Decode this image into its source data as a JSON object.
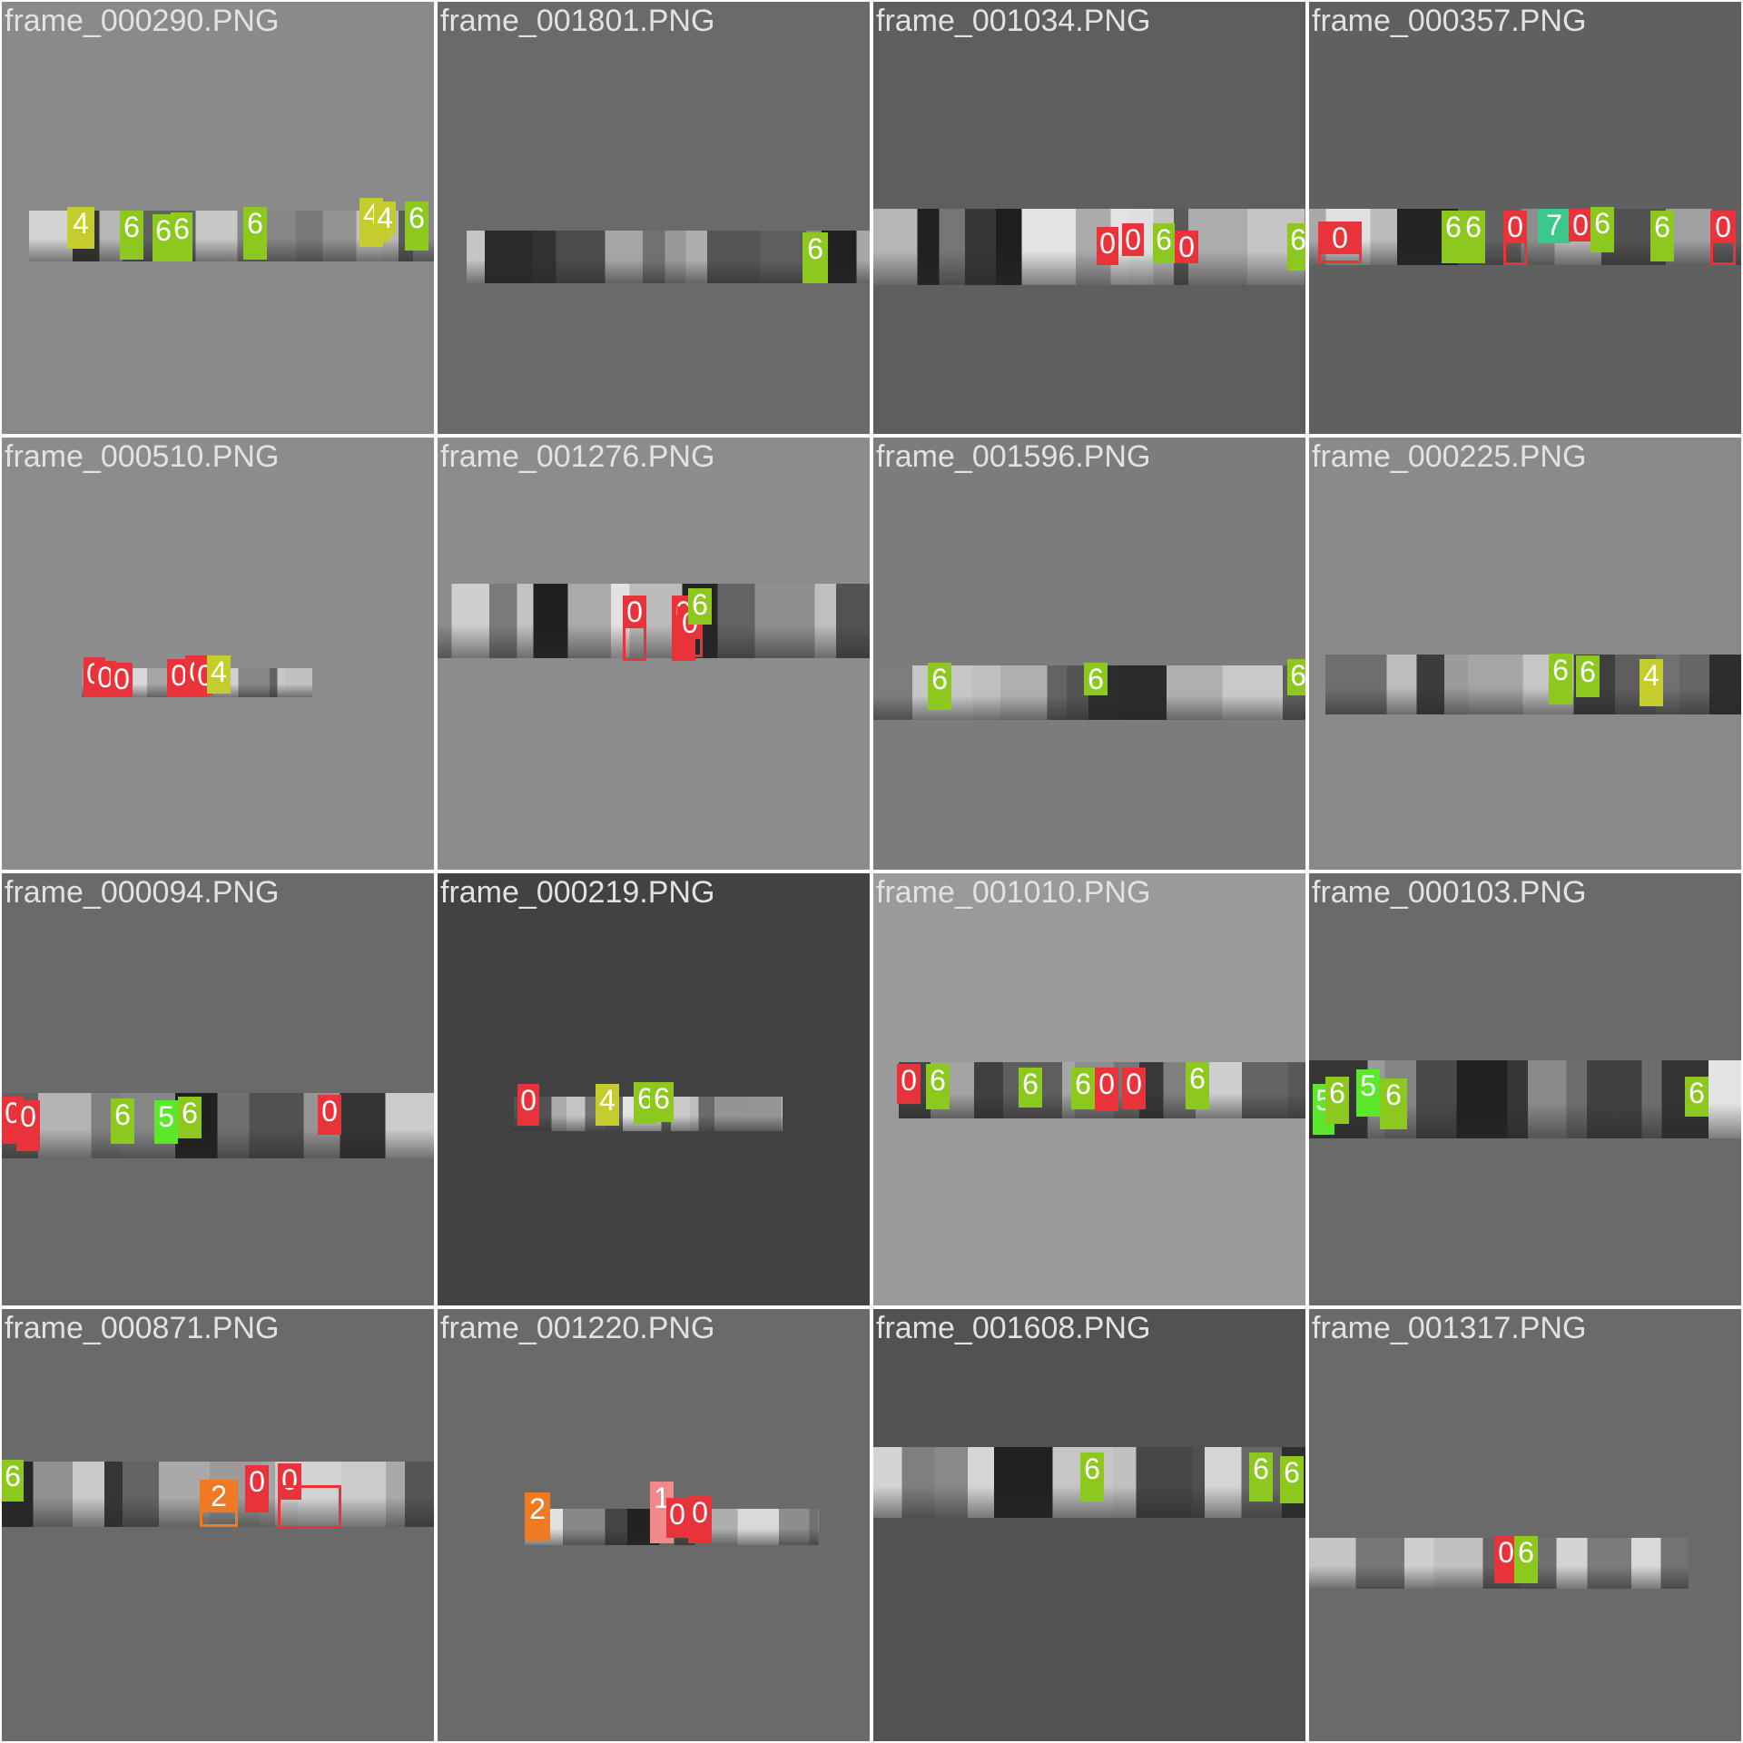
{
  "palette": {
    "0": "#e8333a",
    "1": "#f08a8a",
    "2": "#f07a24",
    "4": "#c4cc2e",
    "5": "#5ce82a",
    "6": "#8cc81e",
    "7": "#3cc88c"
  },
  "tiles": [
    {
      "title": "frame_000290.PNG",
      "bg": "#8a8a8a",
      "labels": [
        {
          "text": "4",
          "cls": "4"
        },
        {
          "text": "6",
          "cls": "6"
        },
        {
          "text": "6",
          "cls": "6"
        },
        {
          "text": "6",
          "cls": "6"
        },
        {
          "text": "6",
          "cls": "6"
        },
        {
          "text": "4",
          "cls": "4"
        },
        {
          "text": "4",
          "cls": "4"
        },
        {
          "text": "6",
          "cls": "6"
        }
      ]
    },
    {
      "title": "frame_001801.PNG",
      "bg": "#6a6a6a",
      "labels": [
        {
          "text": "6",
          "cls": "6"
        }
      ]
    },
    {
      "title": "frame_001034.PNG",
      "bg": "#5e5e5e",
      "labels": [
        {
          "text": "0",
          "cls": "0"
        },
        {
          "text": "0",
          "cls": "0"
        },
        {
          "text": "6",
          "cls": "6"
        },
        {
          "text": "0",
          "cls": "0"
        },
        {
          "text": "6",
          "cls": "6"
        }
      ]
    },
    {
      "title": "frame_000357.PNG",
      "bg": "#606060",
      "labels": [
        {
          "text": "0",
          "cls": "0"
        },
        {
          "text": "6",
          "cls": "6"
        },
        {
          "text": "6",
          "cls": "6"
        },
        {
          "text": "0",
          "cls": "0"
        },
        {
          "text": "7",
          "cls": "7"
        },
        {
          "text": "0",
          "cls": "0"
        },
        {
          "text": "6",
          "cls": "6"
        },
        {
          "text": "6",
          "cls": "6"
        },
        {
          "text": "0",
          "cls": "0"
        }
      ]
    },
    {
      "title": "frame_000510.PNG",
      "bg": "#8c8c8c",
      "labels": [
        {
          "text": "0",
          "cls": "0"
        },
        {
          "text": "0",
          "cls": "0"
        },
        {
          "text": "0",
          "cls": "0"
        },
        {
          "text": "0",
          "cls": "0"
        },
        {
          "text": "0",
          "cls": "0"
        },
        {
          "text": "0",
          "cls": "0"
        },
        {
          "text": "4",
          "cls": "4"
        }
      ]
    },
    {
      "title": "frame_001276.PNG",
      "bg": "#8c8c8c",
      "labels": [
        {
          "text": "0",
          "cls": "0"
        },
        {
          "text": "0",
          "cls": "0"
        },
        {
          "text": "0",
          "cls": "0"
        },
        {
          "text": "6",
          "cls": "6"
        }
      ]
    },
    {
      "title": "frame_001596.PNG",
      "bg": "#7c7c7c",
      "labels": [
        {
          "text": "6",
          "cls": "6"
        },
        {
          "text": "6",
          "cls": "6"
        },
        {
          "text": "6",
          "cls": "6"
        }
      ]
    },
    {
      "title": "frame_000225.PNG",
      "bg": "#8a8a8a",
      "labels": [
        {
          "text": "6",
          "cls": "6"
        },
        {
          "text": "6",
          "cls": "6"
        },
        {
          "text": "4",
          "cls": "4"
        }
      ]
    },
    {
      "title": "frame_000094.PNG",
      "bg": "#6a6a6a",
      "labels": [
        {
          "text": "0",
          "cls": "0"
        },
        {
          "text": "0",
          "cls": "0"
        },
        {
          "text": "6",
          "cls": "6"
        },
        {
          "text": "5",
          "cls": "5"
        },
        {
          "text": "6",
          "cls": "6"
        },
        {
          "text": "0",
          "cls": "0"
        }
      ]
    },
    {
      "title": "frame_000219.PNG",
      "bg": "#424242",
      "labels": [
        {
          "text": "0",
          "cls": "0"
        },
        {
          "text": "4",
          "cls": "4"
        },
        {
          "text": "6",
          "cls": "6"
        },
        {
          "text": "6",
          "cls": "6"
        }
      ]
    },
    {
      "title": "frame_001010.PNG",
      "bg": "#9a9a9a",
      "labels": [
        {
          "text": "0",
          "cls": "0"
        },
        {
          "text": "6",
          "cls": "6"
        },
        {
          "text": "6",
          "cls": "6"
        },
        {
          "text": "6",
          "cls": "6"
        },
        {
          "text": "0",
          "cls": "0"
        },
        {
          "text": "0",
          "cls": "0"
        },
        {
          "text": "6",
          "cls": "6"
        }
      ]
    },
    {
      "title": "frame_000103.PNG",
      "bg": "#6a6a6a",
      "labels": [
        {
          "text": "5",
          "cls": "5"
        },
        {
          "text": "6",
          "cls": "6"
        },
        {
          "text": "5",
          "cls": "5"
        },
        {
          "text": "6",
          "cls": "6"
        },
        {
          "text": "6",
          "cls": "6"
        }
      ]
    },
    {
      "title": "frame_000871.PNG",
      "bg": "#6a6a6a",
      "labels": [
        {
          "text": "6",
          "cls": "6"
        },
        {
          "text": "2",
          "cls": "2"
        },
        {
          "text": "0",
          "cls": "0"
        },
        {
          "text": "0",
          "cls": "0"
        },
        {
          "text": "0",
          "cls": "0"
        }
      ]
    },
    {
      "title": "frame_001220.PNG",
      "bg": "#6a6a6a",
      "labels": [
        {
          "text": "2",
          "cls": "2"
        },
        {
          "text": "1",
          "cls": "1"
        },
        {
          "text": "0",
          "cls": "0"
        },
        {
          "text": "0",
          "cls": "0"
        }
      ]
    },
    {
      "title": "frame_001608.PNG",
      "bg": "#525252",
      "labels": [
        {
          "text": "6",
          "cls": "6"
        },
        {
          "text": "6",
          "cls": "6"
        },
        {
          "text": "6",
          "cls": "6"
        }
      ]
    },
    {
      "title": "frame_001317.PNG",
      "bg": "#6a6a6a",
      "labels": [
        {
          "text": "0",
          "cls": "0"
        },
        {
          "text": "6",
          "cls": "6"
        }
      ]
    }
  ]
}
